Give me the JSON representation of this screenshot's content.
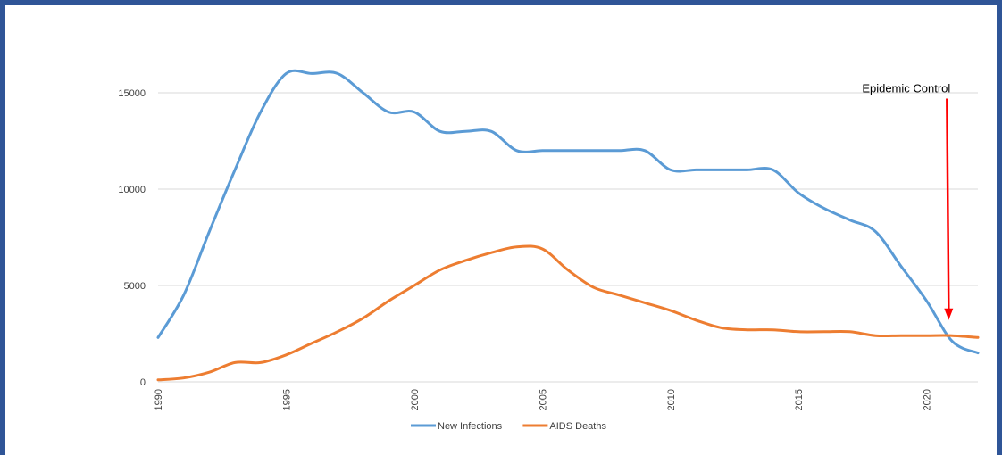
{
  "chart_data": {
    "type": "line",
    "title": "",
    "xlabel": "",
    "ylabel": "",
    "xlim": [
      1990,
      2022
    ],
    "ylim": [
      0,
      17500
    ],
    "y_ticks": [
      0,
      5000,
      10000,
      15000
    ],
    "y_tick_labels": [
      "0",
      "5000",
      "10000",
      "15000"
    ],
    "x_ticks": [
      1990,
      1995,
      2000,
      2005,
      2010,
      2015,
      2020
    ],
    "x_tick_labels": [
      "1990",
      "1995",
      "2000",
      "2005",
      "2010",
      "2015",
      "2020"
    ],
    "grid": "horizontal",
    "legend_position": "bottom",
    "series": [
      {
        "name": "New Infections",
        "color": "#5b9bd5",
        "x": [
          1990,
          1991,
          1992,
          1993,
          1994,
          1995,
          1996,
          1997,
          1998,
          1999,
          2000,
          2001,
          2002,
          2003,
          2004,
          2005,
          2006,
          2007,
          2008,
          2009,
          2010,
          2011,
          2012,
          2013,
          2014,
          2015,
          2016,
          2017,
          2018,
          2019,
          2020,
          2021,
          2022
        ],
        "values": [
          2300,
          4500,
          7800,
          11000,
          14000,
          16000,
          16000,
          16000,
          15000,
          14000,
          14000,
          13000,
          13000,
          13000,
          12000,
          12000,
          12000,
          12000,
          12000,
          12000,
          11000,
          11000,
          11000,
          11000,
          11000,
          9800,
          9000,
          8400,
          7800,
          6000,
          4200,
          2100,
          1500
        ]
      },
      {
        "name": "AIDS Deaths",
        "color": "#ed7d31",
        "x": [
          1990,
          1991,
          1992,
          1993,
          1994,
          1995,
          1996,
          1997,
          1998,
          1999,
          2000,
          2001,
          2002,
          2003,
          2004,
          2005,
          2006,
          2007,
          2008,
          2009,
          2010,
          2011,
          2012,
          2013,
          2014,
          2015,
          2016,
          2017,
          2018,
          2019,
          2020,
          2021,
          2022
        ],
        "values": [
          100,
          200,
          500,
          1000,
          1000,
          1400,
          2000,
          2600,
          3300,
          4200,
          5000,
          5800,
          6300,
          6700,
          7000,
          6900,
          5800,
          4900,
          4500,
          4100,
          3700,
          3200,
          2800,
          2700,
          2700,
          2600,
          2600,
          2600,
          2400,
          2400,
          2400,
          2400,
          2300
        ]
      }
    ],
    "annotations": [
      {
        "text": "Epidemic Control",
        "x": 2021,
        "y_from": 14700,
        "y_to": 3300,
        "color": "#ff0000"
      }
    ]
  }
}
